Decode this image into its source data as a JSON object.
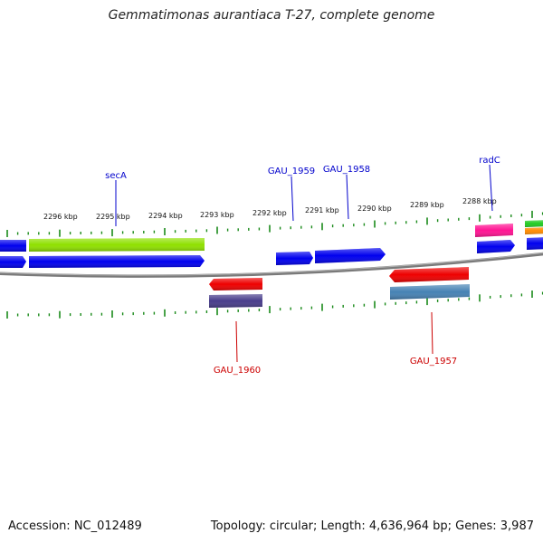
{
  "title": "Gemmatimonas aurantiaca T-27, complete genome",
  "footer": {
    "accession": "Accession: NC_012489",
    "topology": "Topology: circular; Length: 4,636,964 bp; Genes: 3,987"
  },
  "colors": {
    "backbone": "#808080",
    "tick": "#1a8a1a",
    "forward_label": "#0000cc",
    "reverse_label": "#cc0000"
  },
  "scale_labels": [
    "2296 kbp",
    "2295 kbp",
    "2294 kbp",
    "2293 kbp",
    "2292 kbp",
    "2291 kbp",
    "2290 kbp",
    "2289 kbp",
    "2288 kbp"
  ],
  "gene_labels": {
    "forward": [
      "secA",
      "GAU_1959",
      "GAU_1958",
      "radC"
    ],
    "reverse": [
      "GAU_1960",
      "GAU_1957"
    ]
  },
  "features": [
    {
      "id": "f-blue-left-top",
      "color": "#0000ee"
    },
    {
      "id": "f-blue-left-mid",
      "color": "#0000ee"
    },
    {
      "id": "f-secA-green",
      "color": "#8fe000"
    },
    {
      "id": "f-secA-blue",
      "color": "#0000ee"
    },
    {
      "id": "f-gau1959",
      "color": "#0000ee"
    },
    {
      "id": "f-gau1958",
      "color": "#0000ee"
    },
    {
      "id": "f-radC-pink",
      "color": "#ff1493"
    },
    {
      "id": "f-radC-blue",
      "color": "#0000ee"
    },
    {
      "id": "f-right-green",
      "color": "#22cc22"
    },
    {
      "id": "f-right-orange",
      "color": "#ff8c00"
    },
    {
      "id": "f-right-blue",
      "color": "#0000ee"
    },
    {
      "id": "f-gau1960-red",
      "color": "#ee0000"
    },
    {
      "id": "f-gau1960-purple",
      "color": "#483d8b"
    },
    {
      "id": "f-gau1957-red",
      "color": "#ee0000"
    },
    {
      "id": "f-gau1957-steel",
      "color": "#4682b4"
    }
  ]
}
